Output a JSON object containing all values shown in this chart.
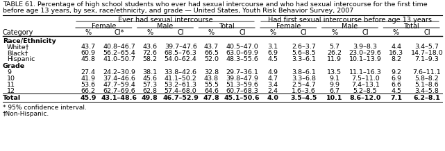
{
  "title_line1": "TABLE 61. Percentage of high school students who ever had sexual intercourse and who had sexual intercourse for the first time",
  "title_line2": "before age 13 years, by sex, race/ethnicity, and grade — United States, Youth Risk Behavior Survey, 2007",
  "header1_left": "Ever had sexual intercourse",
  "header1_right": "Had first sexual intercourse before age 13 years",
  "header2": [
    "Female",
    "Male",
    "Total",
    "Female",
    "Male",
    "Total"
  ],
  "header3": [
    "%",
    "CI*",
    "%",
    "CI",
    "%",
    "CI",
    "%",
    "CI",
    "%",
    "CI",
    "%",
    "CI"
  ],
  "col_label": "Category",
  "section1": "Race/Ethnicity",
  "section2": "Grade",
  "rows": [
    [
      "White†",
      "43.7",
      "40.8–46.7",
      "43.6",
      "39.7–47.6",
      "43.7",
      "40.5–47.0",
      "3.1",
      "2.6–3.7",
      "5.7",
      "3.9–8.3",
      "4.4",
      "3.4–5.7"
    ],
    [
      "Black†",
      "60.9",
      "56.2–65.4",
      "72.6",
      "68.5–76.3",
      "66.5",
      "63.0–69.9",
      "6.9",
      "5.6–8.5",
      "26.2",
      "23.0–29.6",
      "16.3",
      "14.7–18.0"
    ],
    [
      "Hispanic",
      "45.8",
      "41.0–50.7",
      "58.2",
      "54.0–62.4",
      "52.0",
      "48.3–55.6",
      "4.5",
      "3.3–6.1",
      "11.9",
      "10.1–13.9",
      "8.2",
      "7.1–9.3"
    ],
    [
      "9",
      "27.4",
      "24.2–30.9",
      "38.1",
      "33.8–42.6",
      "32.8",
      "29.7–36.1",
      "4.9",
      "3.8–6.1",
      "13.5",
      "11.1–16.3",
      "9.2",
      "7.6–11.1"
    ],
    [
      "10",
      "41.9",
      "37.4–46.6",
      "45.6",
      "41.1–50.2",
      "43.8",
      "39.8–47.9",
      "4.7",
      "3.3–6.8",
      "9.1",
      "7.5–11.0",
      "6.9",
      "5.8–8.2"
    ],
    [
      "11",
      "53.6",
      "47.7–59.4",
      "57.3",
      "53.2–61.3",
      "55.5",
      "51.3–59.6",
      "3.4",
      "2.5–4.7",
      "9.9",
      "7.4–13.1",
      "6.6",
      "5.1–8.6"
    ],
    [
      "12",
      "66.2",
      "62.7–69.6",
      "62.8",
      "57.4–68.0",
      "64.6",
      "60.7–68.3",
      "2.4",
      "1.6–3.6",
      "6.7",
      "5.2–8.5",
      "4.5",
      "3.4–5.8"
    ]
  ],
  "total_row": [
    "Total",
    "45.9",
    "43.1–48.6",
    "49.8",
    "46.7–52.9",
    "47.8",
    "45.1–50.6",
    "4.0",
    "3.5–4.5",
    "10.1",
    "8.6–12.0",
    "7.1",
    "6.2–8.1"
  ],
  "footnotes": [
    "* 95% confidence interval.",
    "†Non-Hispanic."
  ],
  "bg_color": "#ffffff",
  "title_fontsize": 6.8,
  "header_fontsize": 7.0,
  "cell_fontsize": 6.8
}
